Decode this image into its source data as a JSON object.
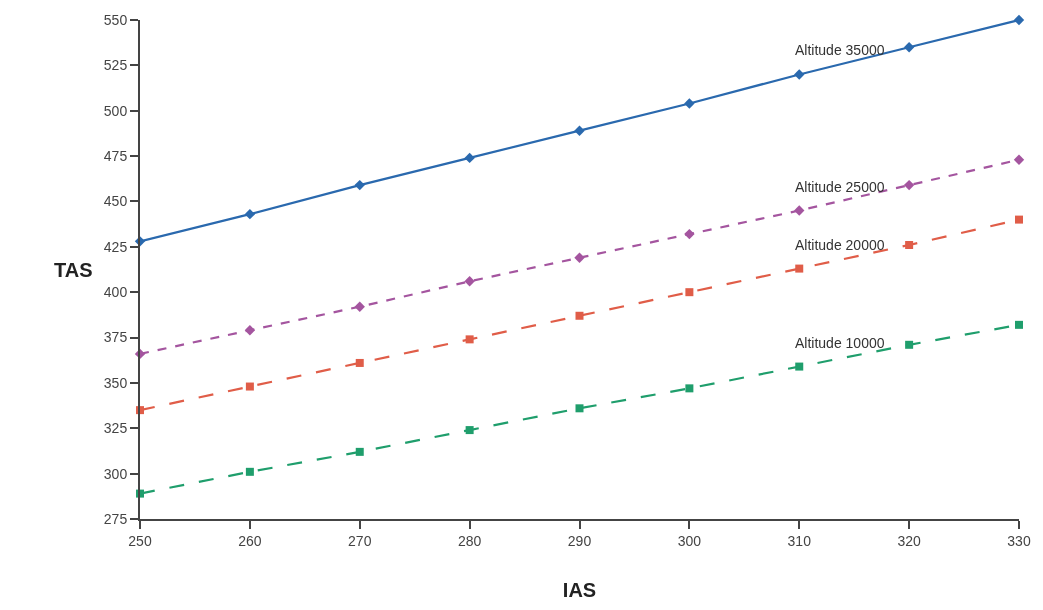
{
  "chart_data": {
    "type": "line",
    "xlabel": "IAS",
    "ylabel": "TAS",
    "x": [
      250,
      260,
      270,
      280,
      290,
      300,
      310,
      320,
      330
    ],
    "series": [
      {
        "name": "Altitude 35000",
        "color": "#2a69ae",
        "marker": "diamond",
        "line_style": "solid",
        "values": [
          428,
          443,
          459,
          474,
          489,
          504,
          520,
          535,
          550
        ]
      },
      {
        "name": "Altitude 25000",
        "color": "#a4559f",
        "marker": "diamond",
        "line_style": "dotted",
        "values": [
          366,
          379,
          392,
          406,
          419,
          432,
          445,
          459,
          473
        ]
      },
      {
        "name": "Altitude 20000",
        "color": "#e05d48",
        "marker": "square",
        "line_style": "dashed",
        "values": [
          335,
          348,
          361,
          374,
          387,
          400,
          413,
          426,
          440
        ]
      },
      {
        "name": "Altitude 10000",
        "color": "#1f9e6c",
        "marker": "square",
        "line_style": "dashed",
        "values": [
          289,
          301,
          312,
          324,
          336,
          347,
          359,
          371,
          382
        ]
      }
    ],
    "xlim": [
      250,
      330
    ],
    "xticks": [
      250,
      260,
      270,
      280,
      290,
      300,
      310,
      320,
      330
    ],
    "ylim": [
      275,
      550
    ],
    "yticks": [
      275,
      300,
      325,
      350,
      375,
      400,
      425,
      450,
      475,
      500,
      525,
      550
    ]
  }
}
